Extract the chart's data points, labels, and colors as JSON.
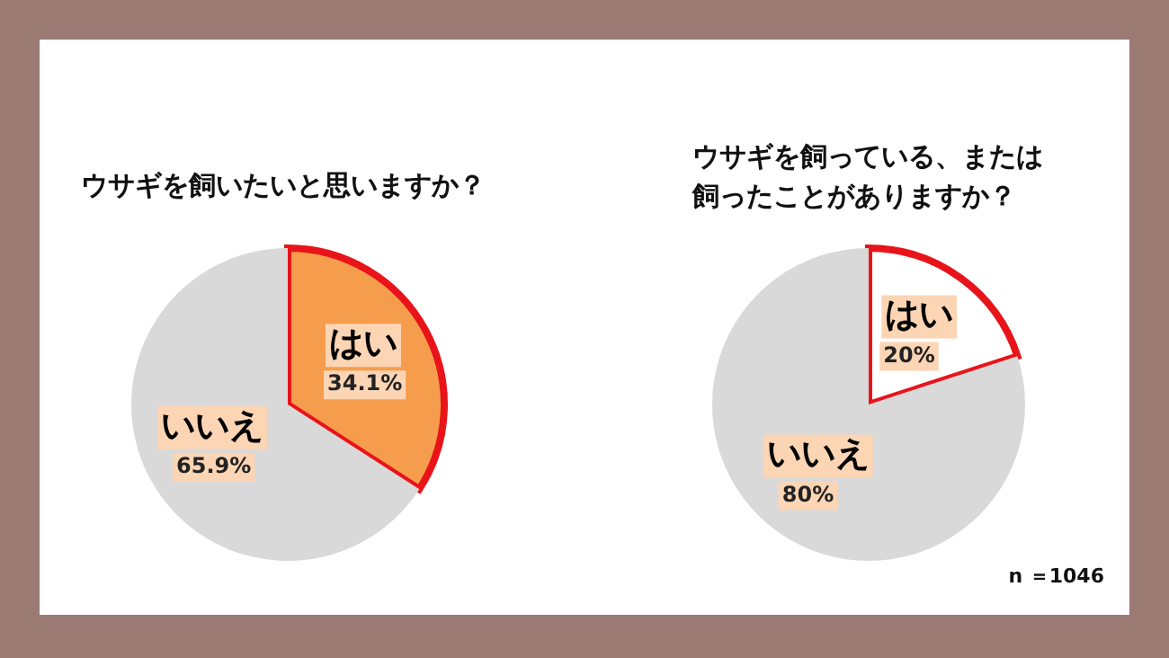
{
  "chart_data": [
    {
      "type": "pie",
      "title": "ウサギを飼いたいと思いますか？",
      "categories": [
        "はい",
        "いいえ"
      ],
      "values": [
        34.1,
        65.9
      ],
      "colors": [
        "#f59d4d",
        "#d9d9d9"
      ],
      "value_labels": [
        "34.1%",
        "65.9%"
      ]
    },
    {
      "type": "pie",
      "title": "ウサギを飼っている、または飼ったことがありますか？",
      "categories": [
        "はい",
        "いいえ"
      ],
      "values": [
        20,
        80
      ],
      "colors": [
        "#ffffff",
        "#d9d9d9"
      ],
      "value_labels": [
        "20%",
        "80%"
      ],
      "annotations": [
        "n ＝1046"
      ]
    }
  ]
}
